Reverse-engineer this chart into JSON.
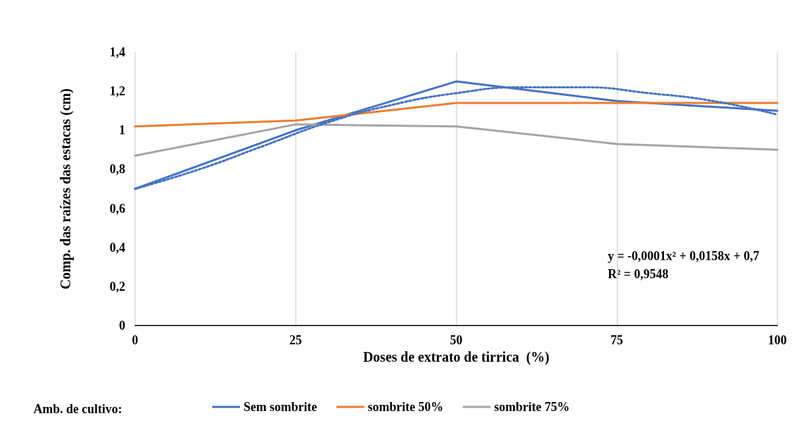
{
  "chart_data": {
    "type": "line",
    "xlabel": "Doses de extrato de tirrica  (%)",
    "ylabel": "Comp. das raízes das estacas (cm)",
    "legend_title": "Amb. de cultivo:",
    "x": [
      0,
      25,
      50,
      75,
      100
    ],
    "series": [
      {
        "name": "Sem sombrite",
        "color": "#4472c4",
        "values": [
          0.7,
          1.0,
          1.25,
          1.15,
          1.1
        ]
      },
      {
        "name": "sombrite 50%",
        "color": "#ed7d31",
        "values": [
          1.02,
          1.05,
          1.14,
          1.14,
          1.14
        ]
      },
      {
        "name": "sombrite 75%",
        "color": "#a5a5a5",
        "values": [
          0.87,
          1.03,
          1.02,
          0.93,
          0.9
        ]
      },
      {
        "color": "#4472c4",
        "line_style": "dotted",
        "x": [
          0,
          10,
          20,
          30,
          40,
          50,
          60,
          70,
          80,
          90,
          100
        ],
        "values": [
          0.7,
          0.8,
          0.92,
          1.04,
          1.13,
          1.19,
          1.22,
          1.22,
          1.19,
          1.15,
          1.08
        ]
      }
    ],
    "xlim": [
      0,
      100
    ],
    "xticks": [
      0,
      25,
      50,
      75,
      100
    ],
    "ylim": [
      0,
      1.4
    ],
    "yticks": [
      0,
      {
        "value": 0.2,
        "label": "0,2"
      },
      {
        "value": 0.4,
        "label": "0,4"
      },
      {
        "value": 0.6,
        "label": "0,6"
      },
      {
        "value": 0.8,
        "label": "0,8"
      },
      1,
      {
        "value": 1.2,
        "label": "1,2"
      },
      {
        "value": 1.4,
        "label": "1,4"
      }
    ],
    "grid": "x",
    "legend": "bottom",
    "marker": "none",
    "line_style": "solid",
    "annotations": [
      "y = -0,0001x² + 0,0158x + 0,7",
      "R² = 0,9548"
    ]
  }
}
